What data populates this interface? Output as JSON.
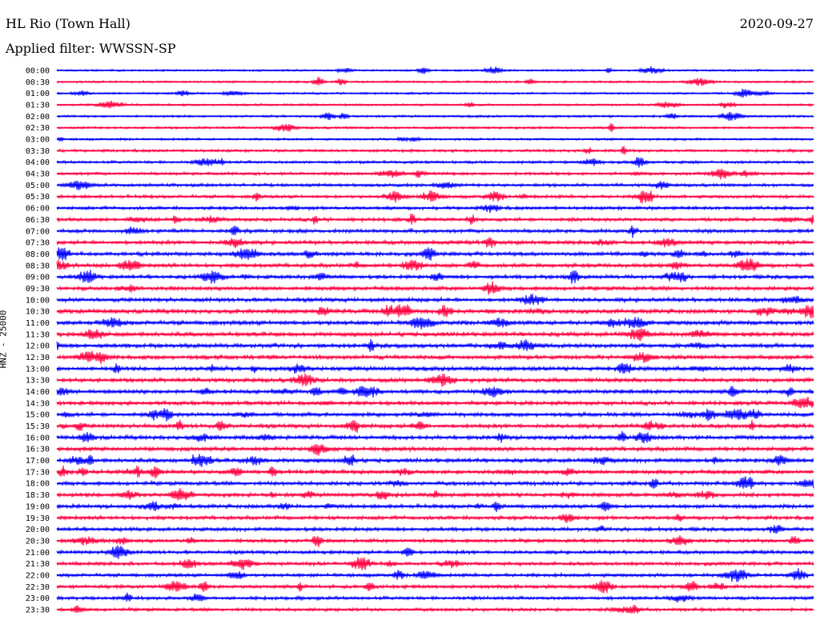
{
  "header": {
    "station": "HL Rio (Town Hall)",
    "date": "2020-09-27",
    "filter": "Applied filter: WWSSN-SP"
  },
  "chart_data": {
    "type": "line",
    "title": "HL Rio (Town Hall)",
    "subtitle": "Applied filter: WWSSN-SP",
    "ylabel": "HNZ - 25000",
    "xlabel": "",
    "rows": [
      "00:00",
      "00:30",
      "01:00",
      "01:30",
      "02:00",
      "02:30",
      "03:00",
      "03:30",
      "04:00",
      "04:30",
      "05:00",
      "05:30",
      "06:00",
      "06:30",
      "07:00",
      "07:30",
      "08:00",
      "08:30",
      "09:00",
      "09:30",
      "10:00",
      "10:30",
      "11:00",
      "11:30",
      "12:00",
      "12:30",
      "13:00",
      "13:30",
      "14:00",
      "14:30",
      "15:00",
      "15:30",
      "16:00",
      "16:30",
      "17:00",
      "17:30",
      "18:00",
      "18:30",
      "19:00",
      "19:30",
      "20:00",
      "20:30",
      "21:00",
      "21:30",
      "22:00",
      "22:30",
      "23:00",
      "23:30"
    ],
    "row_colors": [
      "#0000ff",
      "#ff0040"
    ],
    "activity": [
      0.12,
      0.14,
      0.13,
      0.15,
      0.17,
      0.2,
      0.18,
      0.28,
      0.3,
      0.34,
      0.36,
      0.4,
      0.42,
      0.45,
      0.5,
      0.52,
      0.55,
      0.56,
      0.52,
      0.55,
      0.58,
      0.62,
      0.65,
      0.63,
      0.62,
      0.6,
      0.6,
      0.58,
      0.56,
      0.55,
      0.55,
      0.56,
      0.58,
      0.6,
      0.58,
      0.57,
      0.55,
      0.55,
      0.52,
      0.52,
      0.5,
      0.48,
      0.45,
      0.46,
      0.45,
      0.44,
      0.42,
      0.4
    ],
    "grid": false
  }
}
